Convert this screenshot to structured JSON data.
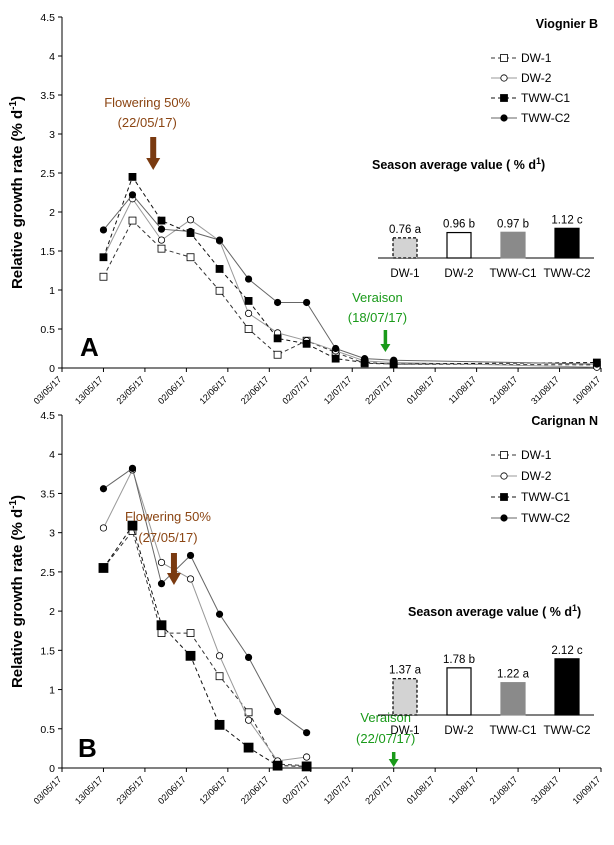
{
  "chart_data": [
    {
      "type": "line",
      "panel": "A",
      "title": "Viognier B",
      "ylabel": "Relative growth rate (% d-1)",
      "ylabel_main": "Relative growth rate (% d",
      "ylabel_sup": "-1",
      "ylabel_end": ")",
      "ylim": [
        0,
        4.5
      ],
      "yticks": [
        "0",
        "0.5",
        "1",
        "1.5",
        "2",
        "2.5",
        "3",
        "3.5",
        "4",
        "4.5"
      ],
      "xticks": [
        "03/05/17",
        "13/05/17",
        "23/05/17",
        "02/06/17",
        "12/06/17",
        "22/06/17",
        "02/07/17",
        "12/07/17",
        "22/07/17",
        "01/08/17",
        "11/08/17",
        "21/08/17",
        "31/08/17",
        "10/09/17"
      ],
      "x_range_days": [
        0,
        130
      ],
      "series": [
        {
          "name": "DW-1",
          "marker": "open-square",
          "dash": true,
          "x": [
            10,
            17,
            24,
            31,
            38,
            45,
            52,
            59,
            66,
            73,
            80,
            129
          ],
          "y": [
            1.17,
            1.89,
            1.53,
            1.42,
            0.99,
            0.5,
            0.17,
            0.35,
            0.2,
            0.06,
            0.05,
            0.04
          ]
        },
        {
          "name": "DW-2",
          "marker": "open-circle",
          "dash": false,
          "x": [
            10,
            17,
            24,
            31,
            38,
            45,
            52,
            59,
            66,
            73,
            80,
            129
          ],
          "y": [
            1.42,
            2.17,
            1.64,
            1.9,
            1.63,
            0.7,
            0.45,
            0.35,
            0.22,
            0.09,
            0.07,
            0.01
          ]
        },
        {
          "name": "TWW-C1",
          "marker": "filled-square",
          "dash": true,
          "x": [
            10,
            17,
            24,
            31,
            38,
            45,
            52,
            59,
            66,
            73,
            80,
            129
          ],
          "y": [
            1.42,
            2.45,
            1.89,
            1.73,
            1.27,
            0.86,
            0.38,
            0.31,
            0.12,
            0.07,
            0.05,
            0.07
          ]
        },
        {
          "name": "TWW-C2",
          "marker": "filled-circle",
          "dash": false,
          "x": [
            10,
            17,
            24,
            31,
            38,
            45,
            52,
            59,
            66,
            73,
            80,
            129
          ],
          "y": [
            1.77,
            2.22,
            1.78,
            1.75,
            1.64,
            1.14,
            0.84,
            0.84,
            0.25,
            0.12,
            0.1,
            0.05
          ]
        }
      ],
      "annotations": {
        "flowering_line1": "Flowering 50%",
        "flowering_line2": "(22/05/17)",
        "flowering_day": 22,
        "veraison_line1": "Veraison",
        "veraison_line2": "(18/07/17)",
        "veraison_day": 78,
        "panel_letter": "A"
      },
      "inset": {
        "title_main": "Season average value ( % d",
        "title_sup": "1",
        "title_end": ")",
        "categories": [
          "DW-1",
          "DW-2",
          "TWW-C1",
          "TWW-C2"
        ],
        "values": [
          0.76,
          0.96,
          0.97,
          1.12
        ],
        "labels": [
          "0.76 a",
          "0.96 b",
          "0.97 b",
          "1.12 c"
        ],
        "colors": [
          "#d3d3d3",
          "#ffffff",
          "#8a8a8a",
          "#000000"
        ]
      }
    },
    {
      "type": "line",
      "panel": "B",
      "title": "Carignan N",
      "ylabel": "Relative growth rate (% d-1)",
      "ylabel_main": "Relative growth rate (% d",
      "ylabel_sup": "-1",
      "ylabel_end": ")",
      "ylim": [
        0,
        4.5
      ],
      "yticks": [
        "0",
        "0.5",
        "1",
        "1.5",
        "2",
        "2.5",
        "3",
        "3.5",
        "4",
        "4.5"
      ],
      "xticks": [
        "03/05/17",
        "13/05/17",
        "23/05/17",
        "02/06/17",
        "12/06/17",
        "22/06/17",
        "02/07/17",
        "12/07/17",
        "22/07/17",
        "01/08/17",
        "11/08/17",
        "21/08/17",
        "31/08/17",
        "10/09/17"
      ],
      "x_range_days": [
        0,
        130
      ],
      "series": [
        {
          "name": "DW-1",
          "marker": "open-square",
          "dash": true,
          "x": [
            10,
            17,
            24,
            31,
            38,
            45,
            52,
            59
          ],
          "y": [
            2.55,
            3.02,
            1.72,
            1.72,
            1.17,
            0.71,
            0.05,
            0.03
          ]
        },
        {
          "name": "DW-2",
          "marker": "open-circle",
          "dash": false,
          "x": [
            10,
            17,
            24,
            31,
            38,
            45,
            52,
            59
          ],
          "y": [
            3.06,
            3.8,
            2.62,
            2.41,
            1.43,
            0.61,
            0.09,
            0.14
          ]
        },
        {
          "name": "TWW-C1",
          "marker": "filled-square",
          "dash": true,
          "x": [
            10,
            17,
            24,
            31,
            38,
            45,
            52,
            59
          ],
          "y": [
            2.55,
            3.09,
            1.82,
            1.43,
            0.55,
            0.26,
            0.03,
            0.02
          ]
        },
        {
          "name": "TWW-C2",
          "marker": "filled-circle",
          "dash": false,
          "x": [
            10,
            17,
            24,
            31,
            38,
            45,
            52,
            59
          ],
          "y": [
            3.56,
            3.82,
            2.35,
            2.71,
            1.96,
            1.41,
            0.72,
            0.45
          ]
        }
      ],
      "annotations": {
        "flowering_line1": "Flowering 50%",
        "flowering_line2": "(27/05/17)",
        "flowering_day": 27,
        "veraison_line1": "Veraison",
        "veraison_line2": "(22/07/17)",
        "veraison_day": 80,
        "panel_letter": "B"
      },
      "inset": {
        "title_main": "Season average value ( % d",
        "title_sup": "1",
        "title_end": ")",
        "categories": [
          "DW-1",
          "DW-2",
          "TWW-C1",
          "TWW-C2"
        ],
        "values": [
          1.37,
          1.78,
          1.22,
          2.12
        ],
        "labels": [
          "1.37 a",
          "1.78 b",
          "1.22 a",
          "2.12 c"
        ],
        "colors": [
          "#d3d3d3",
          "#ffffff",
          "#8a8a8a",
          "#000000"
        ]
      }
    }
  ]
}
